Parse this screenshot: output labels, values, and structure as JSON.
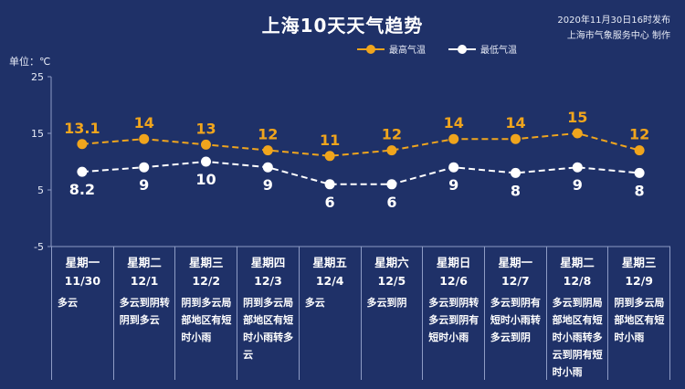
{
  "header": {
    "title": "上海10天天气趋势",
    "publish_time": "2020年11月30日16时发布",
    "publisher": "上海市气象服务中心 制作"
  },
  "colors": {
    "background": "#1f3168",
    "high": "#f0a51d",
    "low": "#ffffff",
    "grid": "#8e9cc5"
  },
  "chart_data": {
    "type": "line",
    "unit_label": "单位：℃",
    "y_ticks": [
      25,
      15,
      5,
      -5
    ],
    "ylim": [
      -5,
      25
    ],
    "categories": [
      "11/30",
      "12/1",
      "12/2",
      "12/3",
      "12/4",
      "12/5",
      "12/6",
      "12/7",
      "12/8",
      "12/9"
    ],
    "series": [
      {
        "name": "最高气温",
        "labels": [
          "13.1",
          "14",
          "13",
          "12",
          "11",
          "12",
          "14",
          "14",
          "15",
          "12"
        ],
        "values": [
          13.1,
          14,
          13,
          12,
          11,
          12,
          14,
          14,
          15,
          12
        ]
      },
      {
        "name": "最低气温",
        "labels": [
          "8.2",
          "9",
          "10",
          "9",
          "6",
          "6",
          "9",
          "8",
          "9",
          "8"
        ],
        "values": [
          8.2,
          9,
          10,
          9,
          6,
          6,
          9,
          8,
          9,
          8
        ]
      }
    ],
    "days": [
      {
        "weekday": "星期一",
        "date": "11/30",
        "weather": "多云"
      },
      {
        "weekday": "星期二",
        "date": "12/1",
        "weather": "多云到阴转阴到多云"
      },
      {
        "weekday": "星期三",
        "date": "12/2",
        "weather": "阴到多云局部地区有短时小雨"
      },
      {
        "weekday": "星期四",
        "date": "12/3",
        "weather": "阴到多云局部地区有短时小雨转多云"
      },
      {
        "weekday": "星期五",
        "date": "12/4",
        "weather": "多云"
      },
      {
        "weekday": "星期六",
        "date": "12/5",
        "weather": "多云到阴"
      },
      {
        "weekday": "星期日",
        "date": "12/6",
        "weather": "多云到阴转多云到阴有短时小雨"
      },
      {
        "weekday": "星期一",
        "date": "12/7",
        "weather": "多云到阴有短时小雨转多云到阴"
      },
      {
        "weekday": "星期二",
        "date": "12/8",
        "weather": "多云到阴局部地区有短时小雨转多云到阴有短时小雨"
      },
      {
        "weekday": "星期三",
        "date": "12/9",
        "weather": "阴到多云局部地区有短时小雨"
      }
    ]
  }
}
